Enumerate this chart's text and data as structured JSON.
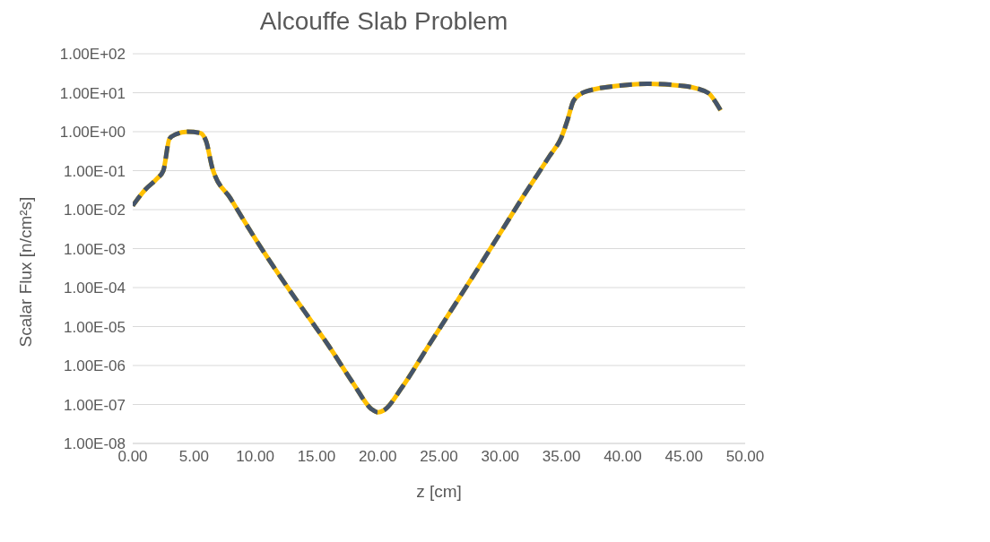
{
  "chart_data": {
    "type": "line",
    "title": "Alcouffe Slab Problem",
    "xlabel": "z [cm]",
    "ylabel": "Scalar Flux [n/cm²s]",
    "log": "y",
    "grid": "y",
    "marker": "none",
    "x": [
      0,
      1,
      2,
      2.5,
      3,
      3.5,
      4.5,
      5.5,
      6,
      6.5,
      8,
      10,
      12,
      14,
      16,
      18,
      19.5,
      20,
      20.5,
      22,
      24,
      26,
      28,
      30,
      32,
      34,
      35,
      35.5,
      36,
      37,
      40,
      42,
      45,
      47,
      47.5,
      48
    ],
    "xlim": [
      0,
      50
    ],
    "xticks": [
      {
        "value": 0,
        "label": "0.00"
      },
      {
        "value": 5,
        "label": "5.00"
      },
      {
        "value": 10,
        "label": "10.00"
      },
      {
        "value": 15,
        "label": "15.00"
      },
      {
        "value": 20,
        "label": "20.00"
      },
      {
        "value": 25,
        "label": "25.00"
      },
      {
        "value": 30,
        "label": "30.00"
      },
      {
        "value": 35,
        "label": "35.00"
      },
      {
        "value": 40,
        "label": "40.00"
      },
      {
        "value": 45,
        "label": "45.00"
      },
      {
        "value": 50,
        "label": "50.00"
      }
    ],
    "ylim": [
      1e-08,
      100
    ],
    "yticks": [
      {
        "value": 1e-08,
        "label": "1.00E-08"
      },
      {
        "value": 1e-07,
        "label": "1.00E-07"
      },
      {
        "value": 1e-06,
        "label": "1.00E-06"
      },
      {
        "value": 1e-05,
        "label": "1.00E-05"
      },
      {
        "value": 0.0001,
        "label": "1.00E-04"
      },
      {
        "value": 0.001,
        "label": "1.00E-03"
      },
      {
        "value": 0.01,
        "label": "1.00E-02"
      },
      {
        "value": 0.1,
        "label": "1.00E-01"
      },
      {
        "value": 1,
        "label": "1.00E+00"
      },
      {
        "value": 10,
        "label": "1.00E+01"
      },
      {
        "value": 100,
        "label": "1.00E+02"
      }
    ],
    "series": [
      {
        "color": "#ffc000",
        "line_style": "solid",
        "values": [
          0.0126,
          0.032,
          0.063,
          0.1,
          0.66,
          0.85,
          1.0,
          0.93,
          0.56,
          0.117,
          0.019,
          0.0018,
          0.0002,
          2.5e-05,
          3.2e-06,
          3.5e-07,
          7.6e-08,
          6.3e-08,
          7.1e-08,
          2.8e-07,
          2.7e-06,
          2.6e-05,
          0.00025,
          0.0025,
          0.025,
          0.23,
          0.72,
          2.0,
          6.3,
          10.7,
          15.5,
          17,
          14.8,
          9.8,
          6.3,
          3.5
        ]
      },
      {
        "color": "#44546a",
        "line_style": "dashed",
        "values": [
          0.0126,
          0.032,
          0.063,
          0.1,
          0.66,
          0.85,
          1.0,
          0.93,
          0.56,
          0.117,
          0.019,
          0.0018,
          0.0002,
          2.5e-05,
          3.2e-06,
          3.5e-07,
          7.6e-08,
          6.3e-08,
          7.1e-08,
          2.8e-07,
          2.7e-06,
          2.6e-05,
          0.00025,
          0.0025,
          0.025,
          0.23,
          0.72,
          2.0,
          6.3,
          10.7,
          15.5,
          17,
          14.8,
          9.8,
          6.3,
          3.5
        ]
      }
    ]
  }
}
